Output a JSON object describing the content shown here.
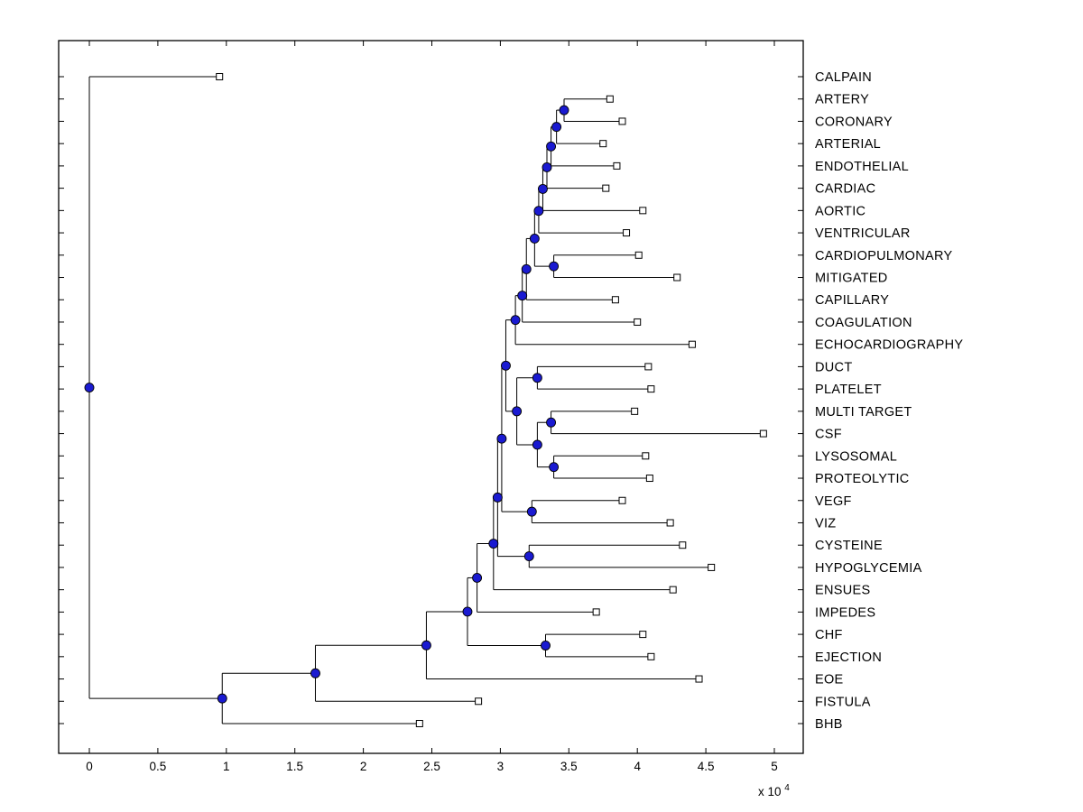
{
  "figure": {
    "background": "#ffffff",
    "frame_color": "#000000"
  },
  "axes": {
    "x_tick_labels": [
      "0",
      "0.5",
      "1",
      "1.5",
      "2",
      "2.5",
      "3",
      "3.5",
      "4",
      "4.5",
      "5"
    ],
    "x_tick_values": [
      0,
      5000,
      10000,
      15000,
      20000,
      25000,
      30000,
      35000,
      40000,
      45000,
      50000
    ],
    "exponent": {
      "base_text": "x 10",
      "power": "4"
    }
  },
  "chart_data": {
    "type": "dendrogram",
    "orientation": "horizontal",
    "legend": "none",
    "grid": "off",
    "unit": 10000,
    "xlim": [
      0,
      50000
    ],
    "line_color": "#000000",
    "branch_node_fill": "#1a1ad1",
    "branch_node_edge": "#000000",
    "leaf_marker_fill": "#ffffff",
    "leaf_marker_edge": "#000000",
    "leaves": [
      {
        "id": "L1",
        "label": "CALPAIN",
        "x": 9500
      },
      {
        "id": "L2",
        "label": "ARTERY",
        "x": 38000
      },
      {
        "id": "L3",
        "label": "CORONARY",
        "x": 38900
      },
      {
        "id": "L4",
        "label": "ARTERIAL",
        "x": 37500
      },
      {
        "id": "L5",
        "label": "ENDOTHELIAL",
        "x": 38500
      },
      {
        "id": "L6",
        "label": "CARDIAC",
        "x": 37700
      },
      {
        "id": "L7",
        "label": "AORTIC",
        "x": 40400
      },
      {
        "id": "L8",
        "label": "VENTRICULAR",
        "x": 39200
      },
      {
        "id": "L9",
        "label": "CARDIOPULMONARY",
        "x": 40100
      },
      {
        "id": "L10",
        "label": "MITIGATED",
        "x": 42900
      },
      {
        "id": "L11",
        "label": "CAPILLARY",
        "x": 38400
      },
      {
        "id": "L12",
        "label": "COAGULATION",
        "x": 40000
      },
      {
        "id": "L13",
        "label": "ECHOCARDIOGRAPHY",
        "x": 44000
      },
      {
        "id": "L14",
        "label": "DUCT",
        "x": 40800
      },
      {
        "id": "L15",
        "label": "PLATELET",
        "x": 41000
      },
      {
        "id": "L16",
        "label": "MULTI TARGET",
        "x": 39800
      },
      {
        "id": "L17",
        "label": "CSF",
        "x": 49200
      },
      {
        "id": "L18",
        "label": "LYSOSOMAL",
        "x": 40600
      },
      {
        "id": "L19",
        "label": "PROTEOLYTIC",
        "x": 40900
      },
      {
        "id": "L20",
        "label": "VEGF",
        "x": 38900
      },
      {
        "id": "L21",
        "label": "VIZ",
        "x": 42400
      },
      {
        "id": "L22",
        "label": "CYSTEINE",
        "x": 43300
      },
      {
        "id": "L23",
        "label": "HYPOGLYCEMIA",
        "x": 45400
      },
      {
        "id": "L24",
        "label": "ENSUES",
        "x": 42600
      },
      {
        "id": "L25",
        "label": "IMPEDES",
        "x": 37000
      },
      {
        "id": "L26",
        "label": "CHF",
        "x": 40400
      },
      {
        "id": "L27",
        "label": "EJECTION",
        "x": 41000
      },
      {
        "id": "L28",
        "label": "EOE",
        "x": 44500
      },
      {
        "id": "L29",
        "label": "FISTULA",
        "x": 28400
      },
      {
        "id": "L30",
        "label": "BHB",
        "x": 24100
      }
    ],
    "branches": [
      {
        "id": "N1",
        "x": 34650,
        "children": [
          "L2",
          "L3"
        ]
      },
      {
        "id": "N2",
        "x": 34100,
        "children": [
          "N1",
          "L4"
        ]
      },
      {
        "id": "N3",
        "x": 33700,
        "children": [
          "N2",
          "L5"
        ]
      },
      {
        "id": "N4",
        "x": 33400,
        "children": [
          "N3",
          "L6"
        ]
      },
      {
        "id": "N5",
        "x": 33100,
        "children": [
          "N4",
          "L7"
        ]
      },
      {
        "id": "N6",
        "x": 32800,
        "children": [
          "N5",
          "L8"
        ]
      },
      {
        "id": "N7",
        "x": 33900,
        "children": [
          "L9",
          "L10"
        ]
      },
      {
        "id": "N8",
        "x": 32500,
        "children": [
          "N6",
          "N7"
        ]
      },
      {
        "id": "N9",
        "x": 31900,
        "children": [
          "N8",
          "L11"
        ]
      },
      {
        "id": "N10",
        "x": 31600,
        "children": [
          "N9",
          "L12"
        ]
      },
      {
        "id": "N11",
        "x": 31100,
        "children": [
          "N10",
          "L13"
        ]
      },
      {
        "id": "N12",
        "x": 32700,
        "children": [
          "L14",
          "L15"
        ]
      },
      {
        "id": "N13",
        "x": 33700,
        "children": [
          "L16",
          "L17"
        ]
      },
      {
        "id": "N14",
        "x": 33900,
        "children": [
          "L18",
          "L19"
        ]
      },
      {
        "id": "N15",
        "x": 32700,
        "children": [
          "N13",
          "N14"
        ]
      },
      {
        "id": "N16",
        "x": 31200,
        "children": [
          "N12",
          "N15"
        ]
      },
      {
        "id": "N17",
        "x": 30400,
        "children": [
          "N11",
          "N16"
        ]
      },
      {
        "id": "N18",
        "x": 32300,
        "children": [
          "L20",
          "L21"
        ]
      },
      {
        "id": "N19",
        "x": 30100,
        "children": [
          "N17",
          "N18"
        ]
      },
      {
        "id": "N20",
        "x": 32100,
        "children": [
          "L22",
          "L23"
        ]
      },
      {
        "id": "N21",
        "x": 29800,
        "children": [
          "N19",
          "N20"
        ]
      },
      {
        "id": "N22",
        "x": 29500,
        "children": [
          "N21",
          "L24"
        ]
      },
      {
        "id": "N23",
        "x": 28300,
        "children": [
          "N22",
          "L25"
        ]
      },
      {
        "id": "N24",
        "x": 33300,
        "children": [
          "L26",
          "L27"
        ]
      },
      {
        "id": "N25",
        "x": 27600,
        "children": [
          "N23",
          "N24"
        ]
      },
      {
        "id": "N26",
        "x": 24600,
        "children": [
          "N25",
          "L28"
        ]
      },
      {
        "id": "N27",
        "x": 16500,
        "children": [
          "N26",
          "L29"
        ]
      },
      {
        "id": "N28",
        "x": 9700,
        "children": [
          "N27",
          "L30"
        ]
      },
      {
        "id": "N29",
        "x": 0,
        "children": [
          "L1",
          "N28"
        ]
      }
    ]
  }
}
